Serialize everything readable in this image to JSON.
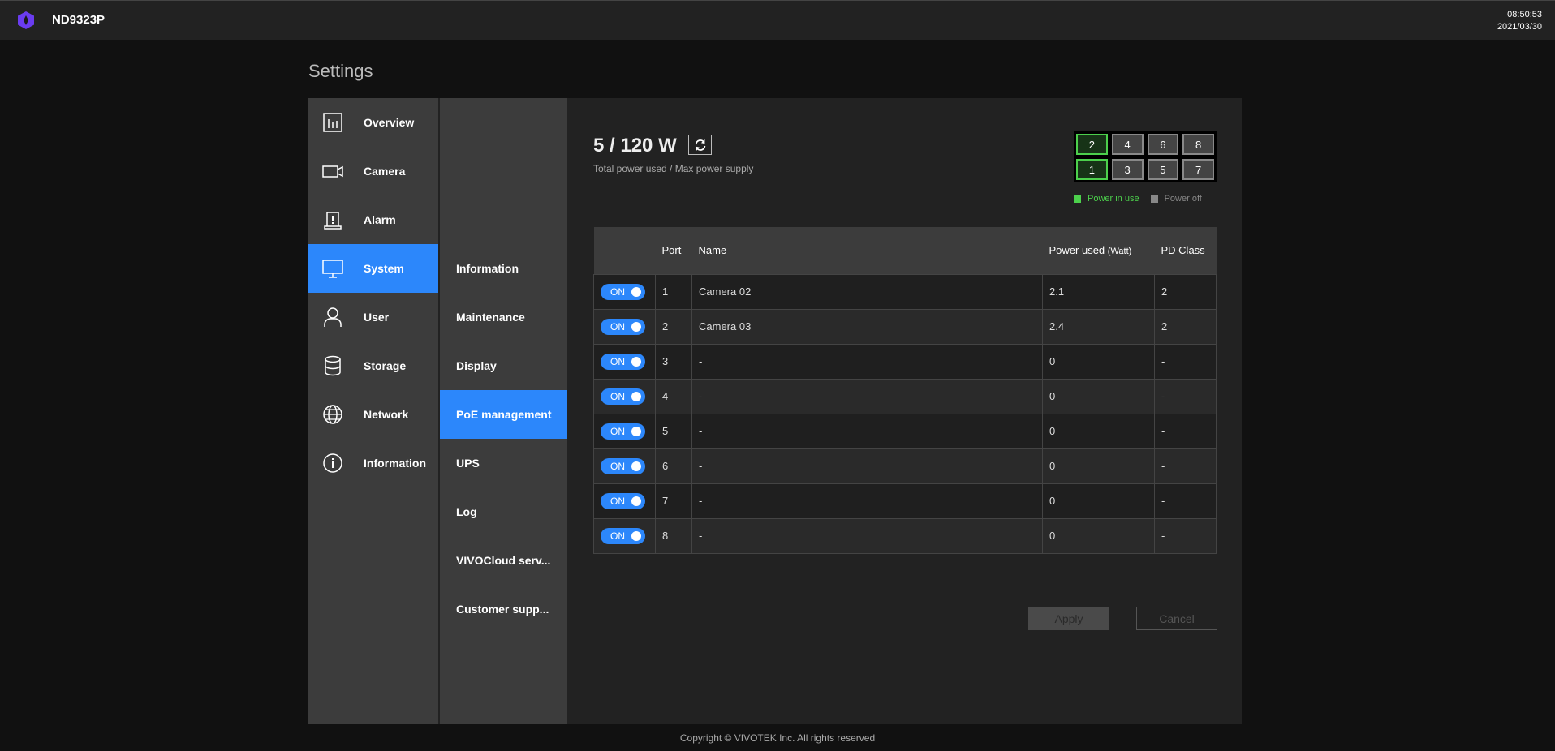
{
  "header": {
    "device": "ND9323P",
    "time": "08:50:53",
    "date": "2021/03/30"
  },
  "page_title": "Settings",
  "nav": [
    {
      "label": "Overview",
      "icon": "chart-icon"
    },
    {
      "label": "Camera",
      "icon": "camera-icon"
    },
    {
      "label": "Alarm",
      "icon": "alarm-icon"
    },
    {
      "label": "System",
      "icon": "monitor-icon",
      "active": true
    },
    {
      "label": "User",
      "icon": "user-icon"
    },
    {
      "label": "Storage",
      "icon": "database-icon"
    },
    {
      "label": "Network",
      "icon": "globe-icon"
    },
    {
      "label": "Information",
      "icon": "info-icon"
    }
  ],
  "subnav": [
    {
      "label": "Information"
    },
    {
      "label": "Maintenance"
    },
    {
      "label": "Display"
    },
    {
      "label": "PoE management",
      "active": true
    },
    {
      "label": "UPS"
    },
    {
      "label": "Log"
    },
    {
      "label": "VIVOCloud serv..."
    },
    {
      "label": "Customer supp..."
    }
  ],
  "poe": {
    "total": "5 / 120 W",
    "subtitle": "Total power used / Max power supply",
    "port_grid": [
      [
        "2",
        "4",
        "6",
        "8"
      ],
      [
        "1",
        "3",
        "5",
        "7"
      ]
    ],
    "ports_in_use": [
      "1",
      "2"
    ],
    "legend": {
      "in_use": "Power in use",
      "off": "Power off"
    },
    "colors": {
      "in_use": "#4cd04c",
      "off": "#888888",
      "accent": "#2c87fb"
    }
  },
  "table": {
    "headers": [
      "",
      "Port",
      "Name",
      "Power used",
      "PD Class"
    ],
    "header_unit": "(Watt)",
    "rows": [
      {
        "toggle": "ON",
        "port": "1",
        "name": "Camera 02",
        "power": "2.1",
        "pd": "2"
      },
      {
        "toggle": "ON",
        "port": "2",
        "name": "Camera 03",
        "power": "2.4",
        "pd": "2"
      },
      {
        "toggle": "ON",
        "port": "3",
        "name": "-",
        "power": "0",
        "pd": "-"
      },
      {
        "toggle": "ON",
        "port": "4",
        "name": "-",
        "power": "0",
        "pd": "-"
      },
      {
        "toggle": "ON",
        "port": "5",
        "name": "-",
        "power": "0",
        "pd": "-"
      },
      {
        "toggle": "ON",
        "port": "6",
        "name": "-",
        "power": "0",
        "pd": "-"
      },
      {
        "toggle": "ON",
        "port": "7",
        "name": "-",
        "power": "0",
        "pd": "-"
      },
      {
        "toggle": "ON",
        "port": "8",
        "name": "-",
        "power": "0",
        "pd": "-"
      }
    ]
  },
  "buttons": {
    "apply": "Apply",
    "cancel": "Cancel"
  },
  "footer": "Copyright © VIVOTEK Inc. All rights reserved"
}
